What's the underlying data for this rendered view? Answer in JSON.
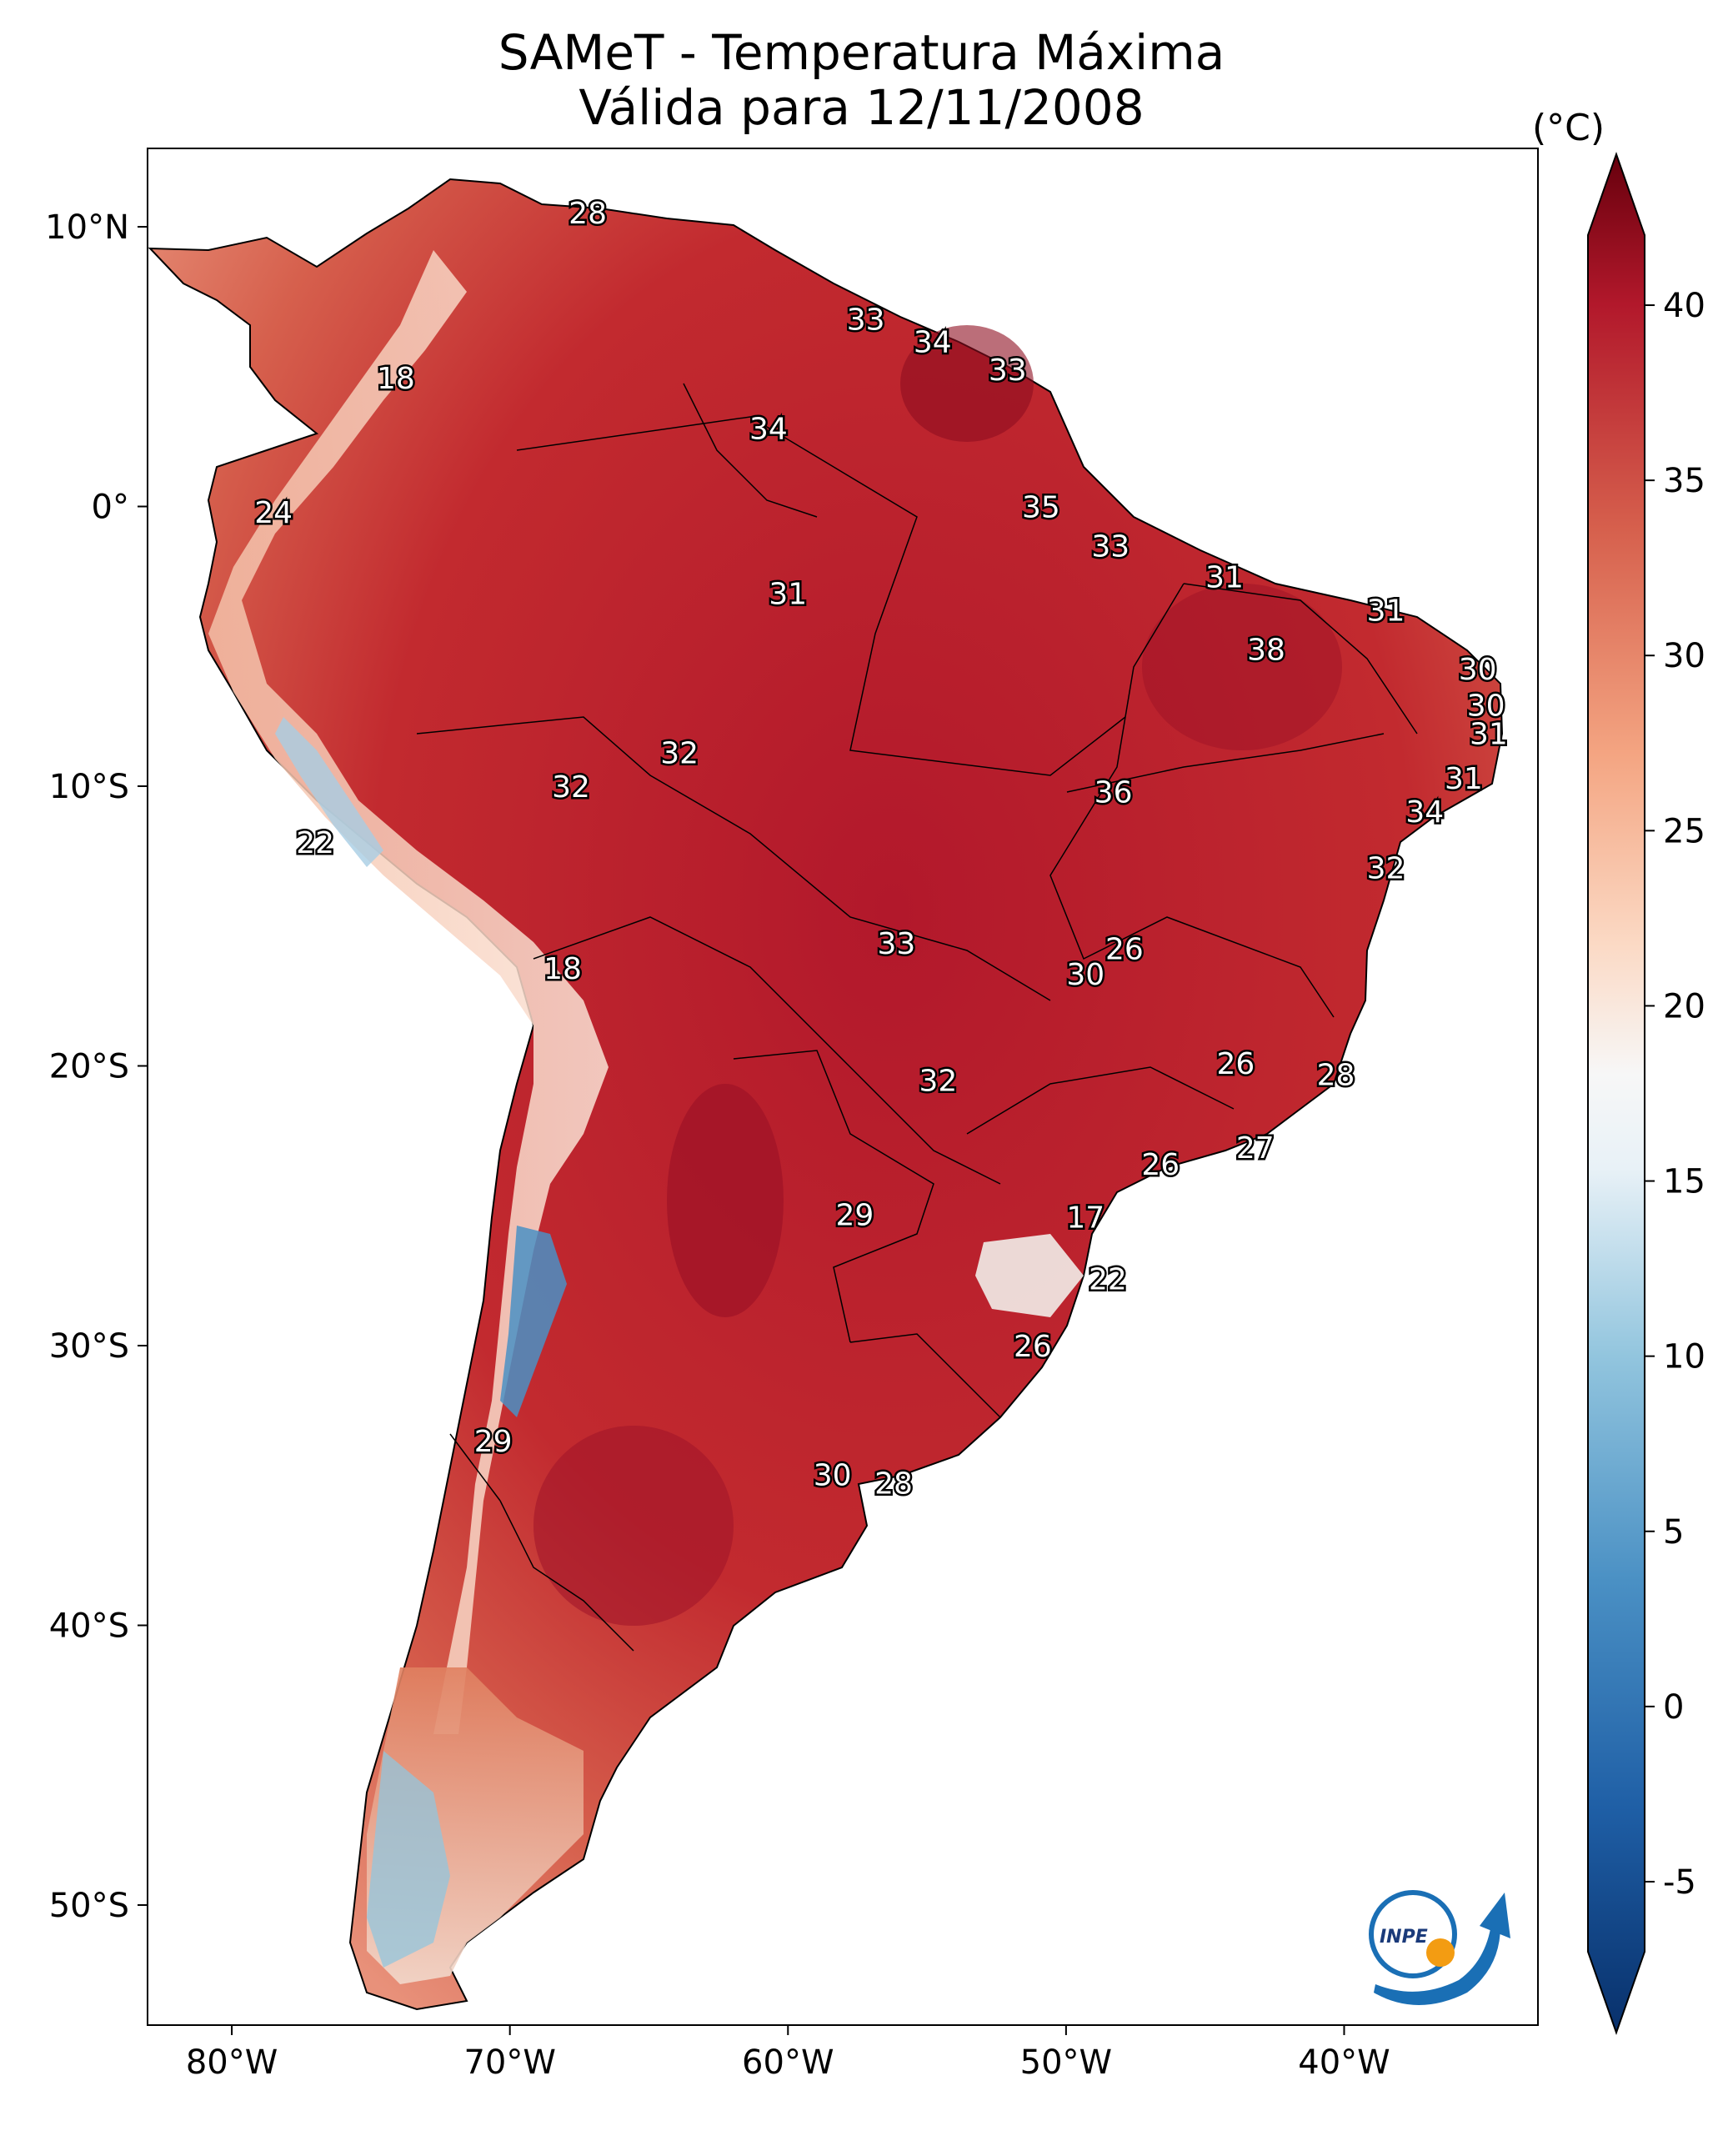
{
  "title": {
    "line1": "SAMeT - Temperatura Máxima",
    "line2": "Válida para 12/11/2008"
  },
  "colorbar": {
    "unit": "(°C)",
    "range": [
      -7,
      42
    ],
    "ticks": [
      {
        "value": 40,
        "label": "40"
      },
      {
        "value": 35,
        "label": "35"
      },
      {
        "value": 30,
        "label": "30"
      },
      {
        "value": 25,
        "label": "25"
      },
      {
        "value": 20,
        "label": "20"
      },
      {
        "value": 15,
        "label": "15"
      },
      {
        "value": 10,
        "label": "10"
      },
      {
        "value": 5,
        "label": "5"
      },
      {
        "value": 0,
        "label": "0"
      },
      {
        "value": -5,
        "label": "-5"
      }
    ],
    "colors": [
      "#08306b",
      "#1f5fa6",
      "#4a90c4",
      "#92c5de",
      "#e8f1f7",
      "#f7f7f7",
      "#fbd9c4",
      "#f4a582",
      "#d6604d",
      "#b2182b",
      "#67000d"
    ]
  },
  "axes": {
    "lon_range": [
      -83,
      -33
    ],
    "lat_range": [
      -56,
      13
    ],
    "lon_ticks": [
      {
        "value": -80,
        "label": "80°W"
      },
      {
        "value": -70,
        "label": "70°W"
      },
      {
        "value": -60,
        "label": "60°W"
      },
      {
        "value": -50,
        "label": "50°W"
      },
      {
        "value": -40,
        "label": "40°W"
      }
    ],
    "lat_ticks": [
      {
        "value": 10,
        "label": "10°N"
      },
      {
        "value": 0,
        "label": "0°"
      },
      {
        "value": -10,
        "label": "10°S"
      },
      {
        "value": -20,
        "label": "20°S"
      },
      {
        "value": -30,
        "label": "30°S"
      },
      {
        "value": -40,
        "label": "40°S"
      },
      {
        "value": -50,
        "label": "50°S"
      }
    ]
  },
  "city_labels": [
    {
      "text": "28",
      "lon": -67.2,
      "lat": 10.5
    },
    {
      "text": "33",
      "lon": -57.2,
      "lat": 6.7
    },
    {
      "text": "34",
      "lon": -54.8,
      "lat": 5.9
    },
    {
      "text": "33",
      "lon": -52.1,
      "lat": 4.9
    },
    {
      "text": "18",
      "lon": -74.1,
      "lat": 4.6
    },
    {
      "text": "34",
      "lon": -60.7,
      "lat": 2.8
    },
    {
      "text": "24",
      "lon": -78.5,
      "lat": -0.2
    },
    {
      "text": "35",
      "lon": -50.9,
      "lat": 0.0
    },
    {
      "text": "33",
      "lon": -48.4,
      "lat": -1.4
    },
    {
      "text": "31",
      "lon": -60.0,
      "lat": -3.1
    },
    {
      "text": "31",
      "lon": -44.3,
      "lat": -2.5
    },
    {
      "text": "31",
      "lon": -38.5,
      "lat": -3.7
    },
    {
      "text": "38",
      "lon": -42.8,
      "lat": -5.1
    },
    {
      "text": "30",
      "lon": -35.2,
      "lat": -5.8
    },
    {
      "text": "30",
      "lon": -34.9,
      "lat": -7.1
    },
    {
      "text": "31",
      "lon": -34.8,
      "lat": -8.1
    },
    {
      "text": "32",
      "lon": -63.9,
      "lat": -8.8
    },
    {
      "text": "32",
      "lon": -67.8,
      "lat": -10.0
    },
    {
      "text": "36",
      "lon": -48.3,
      "lat": -10.2
    },
    {
      "text": "31",
      "lon": -35.7,
      "lat": -9.7
    },
    {
      "text": "34",
      "lon": -37.1,
      "lat": -10.9
    },
    {
      "text": "22",
      "lon": -77.0,
      "lat": -12.0
    },
    {
      "text": "32",
      "lon": -38.5,
      "lat": -12.9
    },
    {
      "text": "26",
      "lon": -47.9,
      "lat": -15.8
    },
    {
      "text": "33",
      "lon": -56.1,
      "lat": -15.6
    },
    {
      "text": "18",
      "lon": -68.1,
      "lat": -16.5
    },
    {
      "text": "30",
      "lon": -49.3,
      "lat": -16.7
    },
    {
      "text": "26",
      "lon": -43.9,
      "lat": -19.9
    },
    {
      "text": "28",
      "lon": -40.3,
      "lat": -20.3
    },
    {
      "text": "32",
      "lon": -54.6,
      "lat": -20.5
    },
    {
      "text": "27",
      "lon": -43.2,
      "lat": -22.9
    },
    {
      "text": "26",
      "lon": -46.6,
      "lat": -23.5
    },
    {
      "text": "29",
      "lon": -57.6,
      "lat": -25.3
    },
    {
      "text": "17",
      "lon": -49.3,
      "lat": -25.4
    },
    {
      "text": "22",
      "lon": -48.5,
      "lat": -27.6
    },
    {
      "text": "26",
      "lon": -51.2,
      "lat": -30.0
    },
    {
      "text": "29",
      "lon": -70.6,
      "lat": -33.4
    },
    {
      "text": "30",
      "lon": -58.4,
      "lat": -34.6
    },
    {
      "text": "28",
      "lon": -56.2,
      "lat": -34.9
    }
  ]
}
